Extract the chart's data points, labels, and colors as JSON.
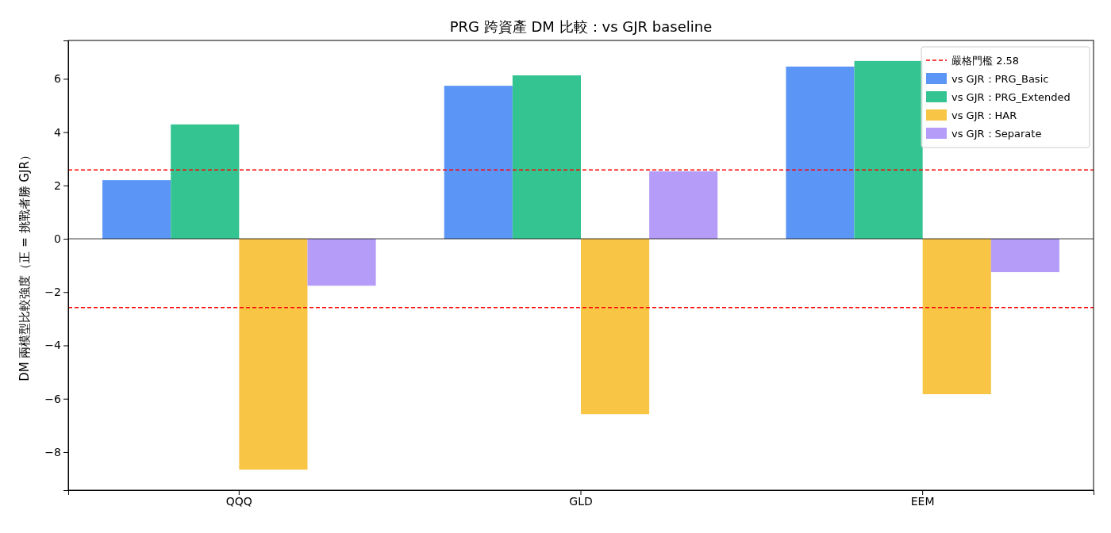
{
  "chart_data": {
    "type": "bar",
    "title": "PRG 跨資產 DM 比較：vs GJR baseline",
    "ylabel": "DM 兩模型比較強度（正 = 挑戰者勝 GJR）",
    "categories": [
      "QQQ",
      "GLD",
      "EEM"
    ],
    "series": [
      {
        "name": "vs GJR：PRG_Basic",
        "color": "#5b96f7",
        "values": [
          2.2,
          5.74,
          6.46
        ]
      },
      {
        "name": "vs GJR：PRG_Extended",
        "color": "#34c491",
        "values": [
          4.29,
          6.13,
          6.67
        ]
      },
      {
        "name": "vs GJR：HAR",
        "color": "#f8c644",
        "values": [
          -8.66,
          -6.58,
          -5.83
        ]
      },
      {
        "name": "vs GJR：Separate",
        "color": "#b49cf8",
        "values": [
          -1.76,
          2.53,
          -1.25
        ]
      }
    ],
    "ylim": [
      -9.43,
      7.44
    ],
    "yticks": [
      -8,
      -6,
      -4,
      -2,
      0,
      2,
      4,
      6
    ],
    "grid": false,
    "legend": "top right",
    "ref_lines": [
      {
        "axis": "y",
        "value": 2.58,
        "label": "嚴格門檻 2.58",
        "color": "#ff0000",
        "line_style": "dashed"
      },
      {
        "axis": "y",
        "value": -2.58,
        "color": "#ff0000",
        "line_style": "dashed"
      },
      {
        "axis": "y",
        "value": 0,
        "color": "#000000",
        "line_style": "solid"
      }
    ]
  }
}
